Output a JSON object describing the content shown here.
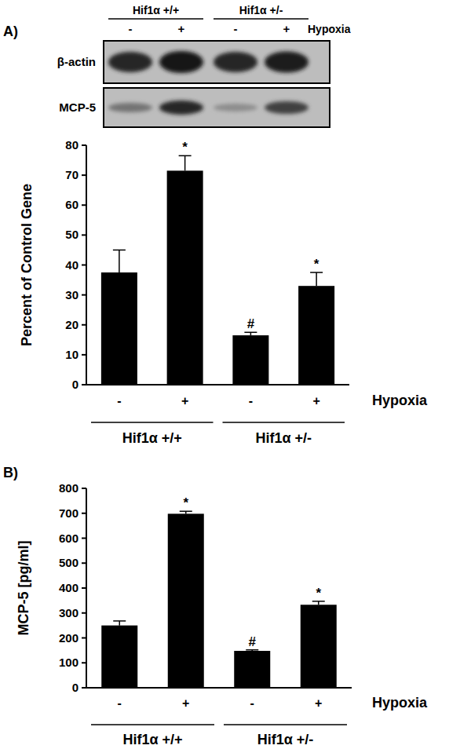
{
  "chart_data": [
    {
      "type": "bar",
      "panel": "A)",
      "y_label": "Percent of Control Gene",
      "x_label": "Hypoxia",
      "categories": [
        "-",
        "+",
        "-",
        "+"
      ],
      "group_labels": [
        "Hif1α +/+",
        "Hif1α +/-"
      ],
      "values": [
        37.5,
        71.5,
        16.5,
        33
      ],
      "errors": [
        7.5,
        5,
        1,
        4.5
      ],
      "significance": [
        null,
        "*",
        "#",
        "*"
      ],
      "color": "#000000",
      "ylim": [
        0,
        80
      ],
      "yticks": [
        0,
        10,
        20,
        30,
        40,
        50,
        60,
        70,
        80
      ],
      "grid": false
    },
    {
      "type": "bar",
      "panel": "B)",
      "y_label": "MCP-5 [pg/ml]",
      "x_label": "Hypoxia",
      "categories": [
        "-",
        "+",
        "-",
        "+"
      ],
      "group_labels": [
        "Hif1α +/+",
        "Hif1α +/-"
      ],
      "values": [
        250,
        698,
        148,
        333
      ],
      "errors": [
        18,
        10,
        4,
        14
      ],
      "significance": [
        null,
        "*",
        "#",
        "*"
      ],
      "color": "#000000",
      "ylim": [
        0,
        800
      ],
      "yticks": [
        0,
        100,
        200,
        300,
        400,
        500,
        600,
        700,
        800
      ],
      "grid": false
    }
  ],
  "blot": {
    "groups": [
      "Hif1α +/+",
      "Hif1α +/-"
    ],
    "lanes": [
      "-",
      "+",
      "-",
      "+"
    ],
    "condition": "Hypoxia",
    "rows": [
      "β-actin",
      "MCP-5"
    ]
  }
}
